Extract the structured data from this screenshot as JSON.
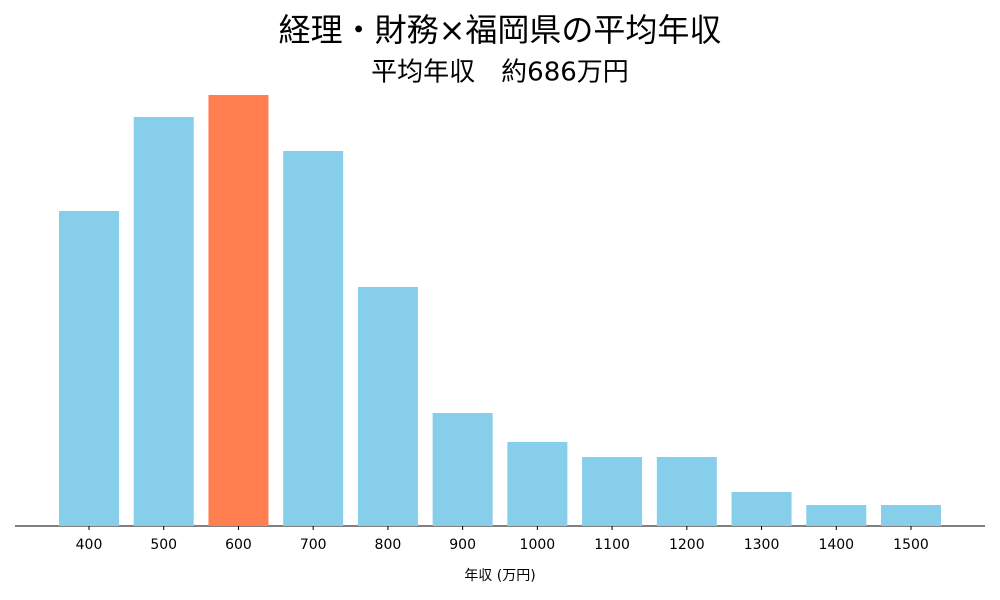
{
  "chart_data": {
    "type": "bar",
    "title": "経理・財務×福岡県の平均年収",
    "subtitle": "平均年収　約686万円",
    "x_label": "年収 (万円)",
    "categories": [
      "400",
      "500",
      "600",
      "700",
      "800",
      "900",
      "1000",
      "1100",
      "1200",
      "1300",
      "1400",
      "1500"
    ],
    "values": [
      315,
      409,
      431,
      375,
      239,
      113,
      84,
      69,
      69,
      34,
      21,
      21
    ],
    "colors": [
      "#87ceeb",
      "#87ceeb",
      "#ff7f50",
      "#87ceeb",
      "#87ceeb",
      "#87ceeb",
      "#87ceeb",
      "#87ceeb",
      "#87ceeb",
      "#87ceeb",
      "#87ceeb",
      "#87ceeb"
    ]
  }
}
